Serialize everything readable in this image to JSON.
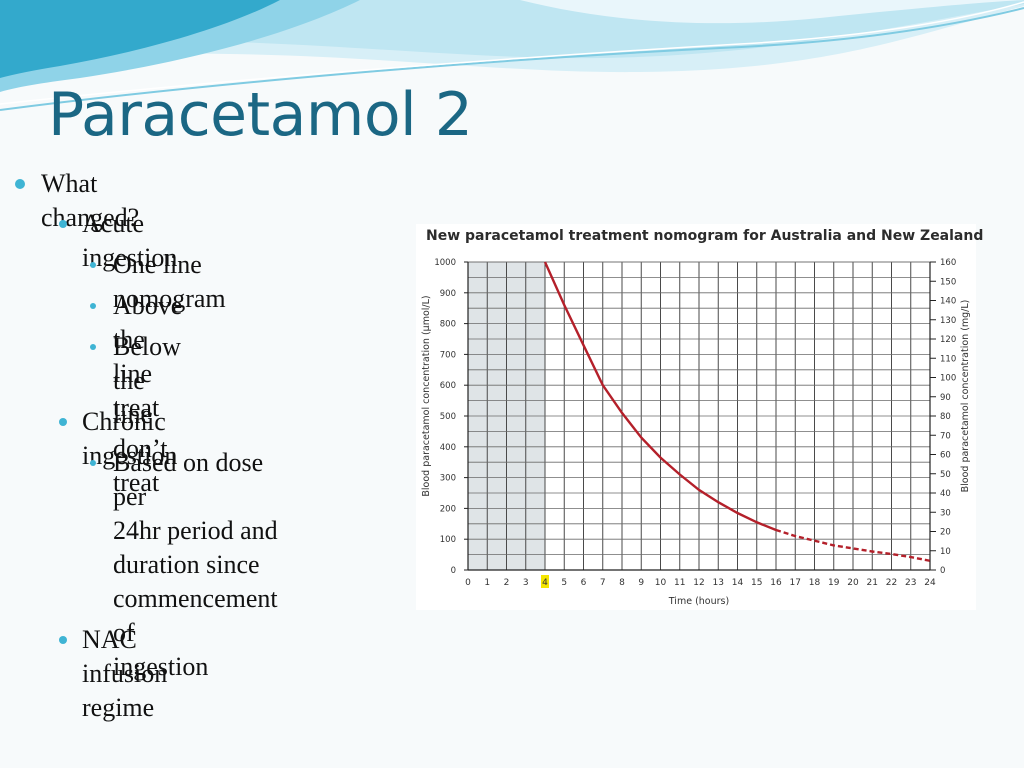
{
  "slide": {
    "title": "Paracetamol 2",
    "colors": {
      "title": "#1b6784",
      "bullet": "#3fb4d4",
      "wave_dark": "#33a9cc",
      "wave_light": "#bfe6f2"
    }
  },
  "bullets": [
    {
      "level": 1,
      "text": "What changed?"
    },
    {
      "level": 2,
      "text": "Acute ingestion"
    },
    {
      "level": 3,
      "text": "One line nomogram"
    },
    {
      "level": 3,
      "text": "Above the line treat"
    },
    {
      "level": 3,
      "lines": [
        "Below the line don’t",
        "treat"
      ]
    },
    {
      "level": 2,
      "text": "Chronic ingestion"
    },
    {
      "level": 3,
      "lines": [
        "Based on  dose per",
        "24hr period and",
        "duration since",
        "commencement of",
        "ingestion"
      ]
    },
    {
      "level": 2,
      "text": "NAC infusion regime"
    }
  ],
  "chart_data": {
    "type": "line",
    "title": "New paracetamol treatment nomogram for Australia and New Zealand",
    "xlabel": "Time (hours)",
    "ylabel": "Blood paracetamol concentration (µmol/L)",
    "y2label": "Blood paracetamol concentration (mg/L)",
    "xlim": [
      0,
      24
    ],
    "ylim": [
      0,
      1000
    ],
    "y2lim": [
      0,
      160
    ],
    "x_ticks": [
      "0",
      "1",
      "2",
      "3",
      "4",
      "5",
      "6",
      "7",
      "8",
      "9",
      "10",
      "11",
      "12",
      "13",
      "14",
      "15",
      "16",
      "17",
      "18",
      "19",
      "20",
      "21",
      "22",
      "23",
      "24"
    ],
    "y_ticks": [
      "0",
      "100",
      "200",
      "300",
      "400",
      "500",
      "600",
      "700",
      "800",
      "900",
      "1000"
    ],
    "y2_ticks": [
      "0",
      "10",
      "20",
      "30",
      "40",
      "50",
      "60",
      "70",
      "80",
      "90",
      "100",
      "110",
      "120",
      "130",
      "140",
      "150",
      "160"
    ],
    "highlighted_x_tick": "4",
    "shaded_x_range": [
      0,
      4
    ],
    "grid": true,
    "series": [
      {
        "color": "#b4202a",
        "x": [
          4,
          5,
          6,
          7,
          8,
          9,
          10,
          11,
          12,
          13,
          14,
          15,
          16,
          17,
          18,
          19,
          20,
          21,
          22,
          23,
          24
        ],
        "y": [
          1000,
          860,
          730,
          600,
          510,
          430,
          365,
          310,
          260,
          220,
          185,
          155,
          130,
          110,
          95,
          80,
          70,
          60,
          52,
          42,
          30
        ],
        "solid_until_x": 16
      }
    ]
  }
}
